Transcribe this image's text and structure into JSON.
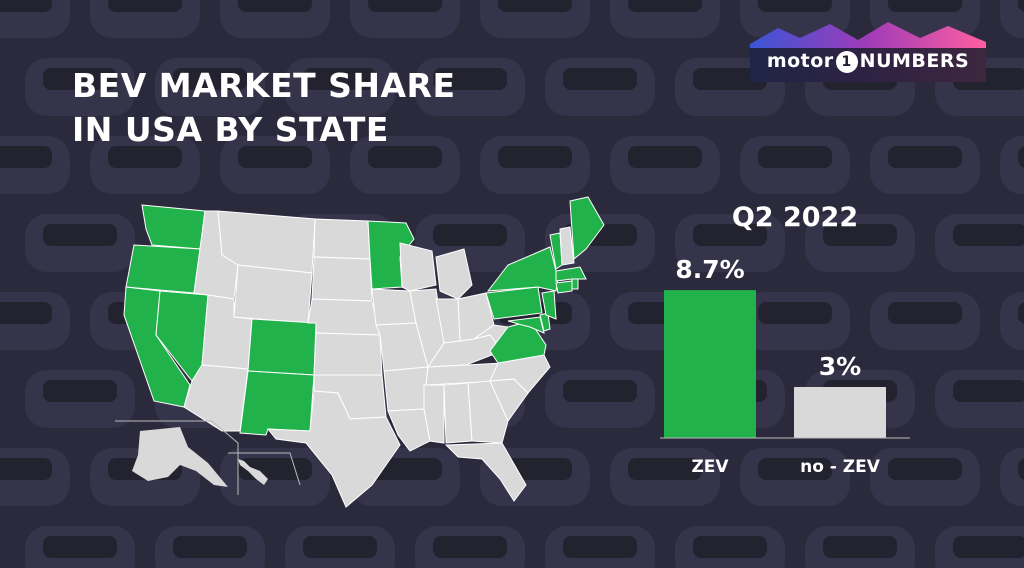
{
  "header": {
    "title_lines": [
      "BEV MARKET SHARE",
      "IN USA BY STATE"
    ]
  },
  "logo": {
    "left": "motor",
    "number": "1",
    "right": "NUMBERS"
  },
  "colors": {
    "zev": "#22b24c",
    "no_zev": "#d9d9d9",
    "text": "#ffffff",
    "background": "#2b2a3c"
  },
  "map": {
    "highlighted_states": [
      "Washington",
      "Oregon",
      "California",
      "Nevada",
      "Colorado",
      "New Mexico",
      "Minnesota",
      "Virginia",
      "Maryland",
      "Delaware",
      "New Jersey",
      "New York",
      "Pennsylvania",
      "Connecticut",
      "Rhode Island",
      "Massachusetts",
      "Vermont",
      "Maine"
    ]
  },
  "chart_data": {
    "type": "bar",
    "title": "Q2 2022",
    "categories": [
      "ZEV",
      "no - ZEV"
    ],
    "values": [
      8.7,
      3
    ],
    "value_labels": [
      "8.7%",
      "3%"
    ],
    "colors": [
      "#22b24c",
      "#d9d9d9"
    ],
    "unit": "%",
    "ylim": [
      0,
      10
    ],
    "grid": false,
    "legend": "none"
  }
}
